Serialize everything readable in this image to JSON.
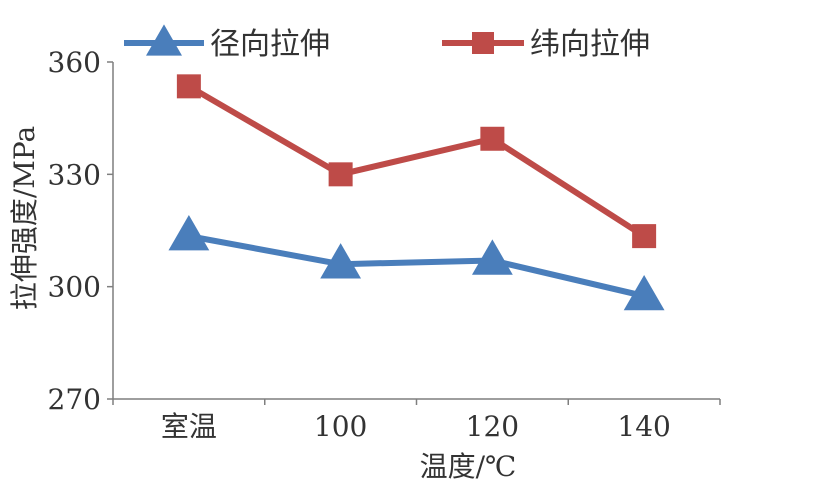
{
  "chart_data": {
    "type": "line",
    "categories": [
      "室温",
      "100",
      "120",
      "140"
    ],
    "series": [
      {
        "name": "径向拉伸",
        "values": [
          313.5,
          306,
          307,
          297.5
        ],
        "color": "#4a7ebb",
        "marker": "triangle"
      },
      {
        "name": "纬向拉伸",
        "values": [
          353.5,
          330,
          339.5,
          313.5
        ],
        "color": "#be4b48",
        "marker": "square"
      }
    ],
    "xlabel": "温度/℃",
    "ylabel": "拉伸强度/MPa",
    "ylim": [
      270,
      360
    ],
    "yticks": [
      "270",
      "300",
      "330",
      "360"
    ],
    "grid": false,
    "legend_position": "top"
  }
}
